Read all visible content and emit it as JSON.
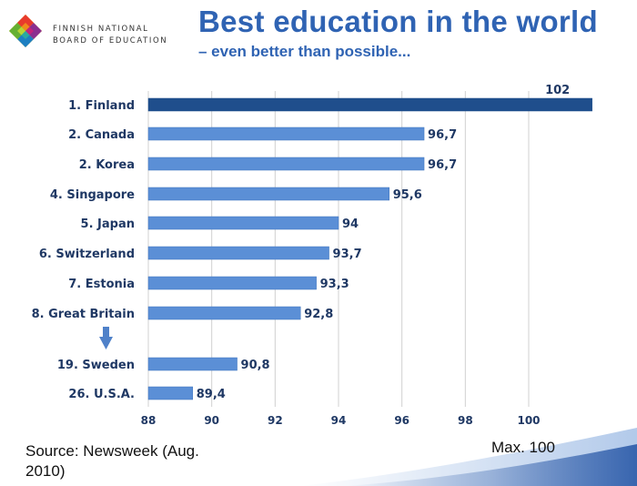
{
  "logo": {
    "line1": "FINNISH NATIONAL",
    "line2": "BOARD OF EDUCATION"
  },
  "header": {
    "title": "Best education in the world",
    "subtitle": "– even better than possible..."
  },
  "chart_data": {
    "type": "bar",
    "orientation": "horizontal",
    "categories": [
      "1. Finland",
      "2. Canada",
      "2. Korea",
      "4. Singapore",
      "5. Japan",
      "6. Switzerland",
      "7. Estonia",
      "8. Great Britain",
      "19. Sweden",
      "26. U.S.A."
    ],
    "values": [
      102,
      96.7,
      96.7,
      95.6,
      94,
      93.7,
      93.3,
      92.8,
      90.8,
      89.4
    ],
    "value_labels": [
      "102",
      "96,7",
      "96,7",
      "95,6",
      "94",
      "93,7",
      "93,3",
      "92,8",
      "90,8",
      "89,4"
    ],
    "xlim": [
      88,
      100
    ],
    "xticks": [
      "88",
      "90",
      "92",
      "94",
      "96",
      "98",
      "100"
    ],
    "xtick_values": [
      88,
      90,
      92,
      94,
      96,
      98,
      100
    ],
    "grid": true,
    "highlight_index": 0,
    "colors": {
      "highlight": "#1f4e8c",
      "bar": "#5b8fd6",
      "bar_edge": "#3f73bd",
      "grid": "#d0d0d0",
      "arrow": "#4f81c9",
      "label": "#1f3864"
    }
  },
  "footer": {
    "source_line1": "Source: Newsweek (Aug.",
    "source_line2": "2010)",
    "max_note": "Max. 100"
  },
  "colors": {
    "title": "#2f63b3",
    "wave": "#2b5aa8"
  }
}
